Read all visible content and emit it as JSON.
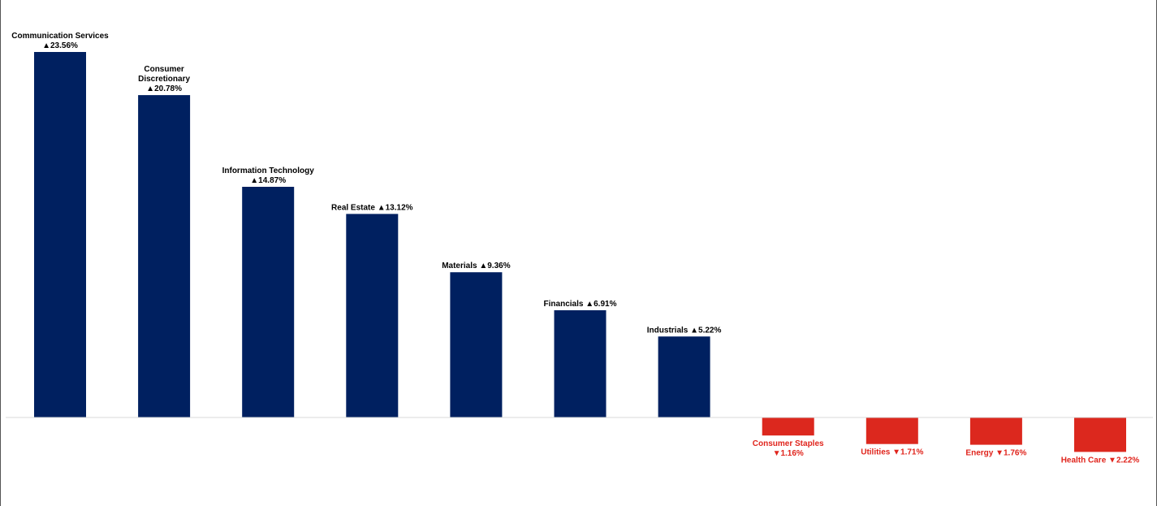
{
  "chart_data": {
    "type": "bar",
    "categories": [
      "Communication Services",
      "Consumer Discretionary",
      "Information Technology",
      "Real Estate",
      "Materials",
      "Financials",
      "Industrials",
      "Consumer Staples",
      "Utilities",
      "Energy",
      "Health Care"
    ],
    "values": [
      23.56,
      20.78,
      14.87,
      13.12,
      9.36,
      6.91,
      5.22,
      -1.16,
      -1.71,
      -1.76,
      -2.22
    ],
    "labels": [
      [
        "Communication Services",
        "▲23.56%"
      ],
      [
        "Consumer",
        "Discretionary",
        "▲20.78%"
      ],
      [
        "Information Technology",
        "▲14.87%"
      ],
      [
        "Real Estate  ▲13.12%"
      ],
      [
        "Materials  ▲9.36%"
      ],
      [
        "Financials ▲6.91%"
      ],
      [
        "Industrials ▲5.22%"
      ],
      [
        "Consumer Staples",
        "▼1.16%"
      ],
      [
        "Utilities  ▼1.71%"
      ],
      [
        "Energy ▼1.76%"
      ],
      [
        "Health Care ▼2.22%"
      ]
    ],
    "title": "",
    "xlabel": "",
    "ylabel": "",
    "ylim": [
      -5.5,
      26.5
    ],
    "grid": false,
    "legend": "none",
    "colors": {
      "positive": "#002060",
      "negative": "#DC281E",
      "positive_label": "#000000",
      "negative_label": "#E0241C",
      "baseline": "#D9D9D9"
    }
  }
}
